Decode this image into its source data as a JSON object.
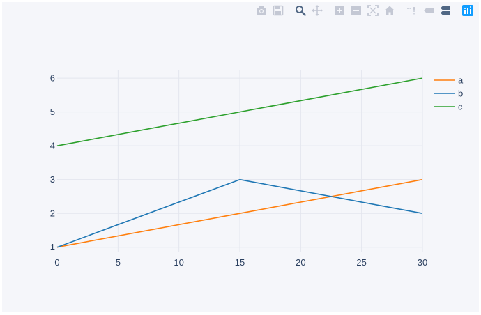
{
  "modebar": {
    "buttons": [
      {
        "name": "camera-icon"
      },
      {
        "name": "save-icon"
      },
      {
        "name": "zoom-icon",
        "active": true
      },
      {
        "name": "pan-icon"
      },
      {
        "name": "zoom-in-icon"
      },
      {
        "name": "zoom-out-icon"
      },
      {
        "name": "autoscale-icon"
      },
      {
        "name": "reset-axes-icon"
      },
      {
        "name": "spike-lines-icon"
      },
      {
        "name": "hover-closest-icon"
      },
      {
        "name": "hover-compare-icon"
      },
      {
        "name": "plotly-logo-icon"
      }
    ],
    "colors": {
      "inactive": "#c4c8d4",
      "active": "#506784",
      "logo": "#3f4f75"
    }
  },
  "chart_data": {
    "type": "line",
    "x": [
      0,
      15,
      30
    ],
    "series": [
      {
        "name": "a",
        "values": [
          1,
          2,
          3
        ],
        "color": "#ff7f0e"
      },
      {
        "name": "b",
        "values": [
          1,
          3,
          2
        ],
        "color": "#1f77b4"
      },
      {
        "name": "c",
        "values": [
          4,
          5,
          6
        ],
        "color": "#2ca02c"
      }
    ],
    "xticks": [
      0,
      5,
      10,
      15,
      20,
      25,
      30
    ],
    "yticks": [
      1,
      2,
      3,
      4,
      5,
      6
    ],
    "xlim": [
      0,
      30
    ],
    "ylim": [
      0.85,
      6.25
    ],
    "grid": true,
    "legend": "top-right",
    "title": "",
    "xlabel": "",
    "ylabel": ""
  }
}
